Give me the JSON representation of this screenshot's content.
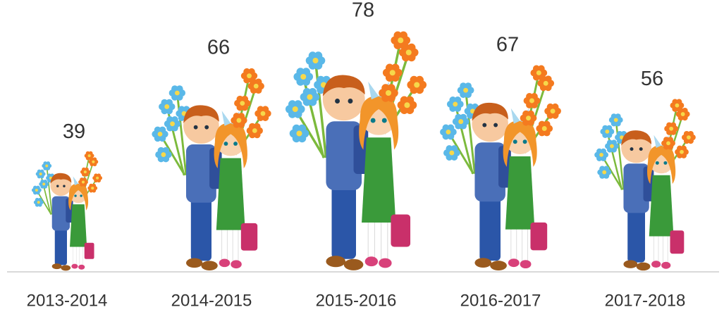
{
  "chart_data": {
    "type": "pictograph",
    "categories": [
      "2013-2014",
      "2014-2015",
      "2015-2016",
      "2016-2017",
      "2017-2018"
    ],
    "values": [
      39,
      66,
      78,
      67,
      56
    ]
  }
}
